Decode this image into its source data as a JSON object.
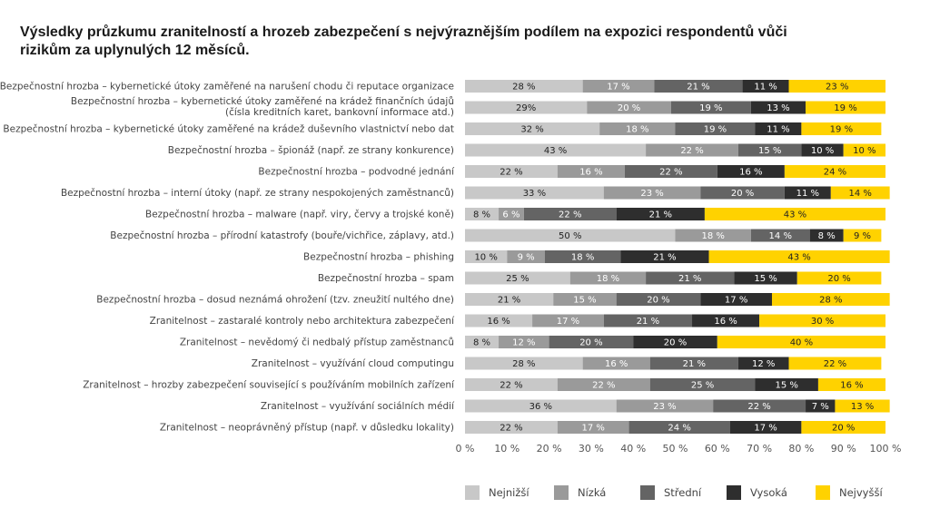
{
  "chart_data": {
    "type": "bar",
    "orientation": "horizontal",
    "stacked": true,
    "title": "Výsledky průzkumu zranitelností a hrozeb zabezpečení s nejvýraznějším podílem na expozici respondentů vůči rizikům za uplynulých 12 měsíců.",
    "categories": [
      [
        "Bezpečnostní hrozba – kybernetické útoky zaměřené na narušení chodu či reputace organizace"
      ],
      [
        "Bezpečnostní hrozba – kybernetické útoky zaměřené na krádež finančních údajů",
        "(čísla kreditních karet, bankovní informace atd.)"
      ],
      [
        "Bezpečnostní hrozba – kybernetické útoky zaměřené na krádež duševního vlastnictví nebo dat"
      ],
      [
        "Bezpečnostní hrozba – špionáž (např. ze strany konkurence)"
      ],
      [
        "Bezpečnostní hrozba – podvodné jednání"
      ],
      [
        "Bezpečnostní hrozba – interní útoky (např. ze strany nespokojených zaměstnanců)"
      ],
      [
        "Bezpečnostní hrozba – malware (např. viry, červy a trojské koně)"
      ],
      [
        "Bezpečnostní hrozba – přírodní katastrofy (bouře/vichřice, záplavy, atd.)"
      ],
      [
        "Bezpečnostní hrozba – phishing"
      ],
      [
        "Bezpečnostní hrozba – spam"
      ],
      [
        "Bezpečnostní hrozba – dosud neznámá ohrožení (tzv. zneužití nultého dne)"
      ],
      [
        "Zranitelnost – zastaralé kontroly nebo architektura zabezpečení"
      ],
      [
        "Zranitelnost – nevědomý či nedbalý přístup zaměstnanců"
      ],
      [
        "Zranitelnost – využívání cloud computingu"
      ],
      [
        "Zranitelnost – hrozby zabezpečení související s používáním mobilních zařízení"
      ],
      [
        "Zranitelnost – využívání sociálních médií"
      ],
      [
        "Zranitelnost – neoprávněný přístup (např. v důsledku lokality)"
      ]
    ],
    "series": [
      {
        "name": "Nejnižší",
        "color": "#c8c8c8",
        "text_color": "#222222",
        "values": [
          28,
          29,
          32,
          43,
          22,
          33,
          8,
          50,
          10,
          25,
          21,
          16,
          8,
          28,
          22,
          36,
          22
        ],
        "labels": [
          "28 %",
          "29%",
          "32 %",
          "43 %",
          "22 %",
          "33 %",
          "8 %",
          "50 %",
          "10 %",
          "25 %",
          "21 %",
          "16 %",
          "8 %",
          "28 %",
          "22 %",
          "36 %",
          "22 %"
        ]
      },
      {
        "name": "Nízká",
        "color": "#9a9a9a",
        "text_color": "#ffffff",
        "values": [
          17,
          20,
          18,
          22,
          16,
          23,
          6,
          18,
          9,
          18,
          15,
          17,
          12,
          16,
          22,
          23,
          17
        ],
        "labels": [
          "17 %",
          "20 %",
          "18 %",
          "22 %",
          "16 %",
          "23 %",
          "6 %",
          "18 %",
          "9 %",
          "18 %",
          "15 %",
          "17 %",
          "12 %",
          "16 %",
          "22 %",
          "23 %",
          "17 %"
        ]
      },
      {
        "name": "Střední",
        "color": "#646464",
        "text_color": "#ffffff",
        "values": [
          21,
          19,
          19,
          15,
          22,
          20,
          22,
          14,
          18,
          21,
          20,
          21,
          20,
          21,
          25,
          22,
          24
        ],
        "labels": [
          "21 %",
          "19 %",
          "19 %",
          "15 %",
          "22 %",
          "20 %",
          "22 %",
          "14 %",
          "18 %",
          "21 %",
          "20 %",
          "21 %",
          "20 %",
          "21 %",
          "25 %",
          "22 %",
          "24 %"
        ]
      },
      {
        "name": "Vysoká",
        "color": "#2e2e2e",
        "text_color": "#ffffff",
        "values": [
          11,
          13,
          11,
          10,
          16,
          11,
          21,
          8,
          21,
          15,
          17,
          16,
          20,
          12,
          15,
          7,
          17
        ],
        "labels": [
          "11 %",
          "13 %",
          "11 %",
          "10 %",
          "16 %",
          "11 %",
          "21 %",
          "8 %",
          "21 %",
          "15 %",
          "17 %",
          "16 %",
          "20 %",
          "12 %",
          "15 %",
          "7 %",
          "17 %"
        ]
      },
      {
        "name": "Nejvyšší",
        "color": "#ffd200",
        "text_color": "#222222",
        "values": [
          23,
          19,
          19,
          10,
          24,
          14,
          43,
          9,
          43,
          20,
          28,
          30,
          40,
          22,
          16,
          13,
          20
        ],
        "labels": [
          "23 %",
          "19 %",
          "19 %",
          "10 %",
          "24 %",
          "14 %",
          "43 %",
          "9 %",
          "43 %",
          "20 %",
          "28 %",
          "30 %",
          "40 %",
          "22 %",
          "16 %",
          "13 %",
          "20 %"
        ]
      }
    ],
    "xlim": [
      0,
      100
    ],
    "xticks": [
      "0 %",
      "10 %",
      "20 %",
      "30 %",
      "40 %",
      "50 %",
      "60 %",
      "70 %",
      "80 %",
      "90 %",
      "100 %"
    ],
    "grid": false,
    "legend": {
      "position": "bottom-right",
      "entries": [
        "Nejnižší",
        "Nízká",
        "Střední",
        "Vysoká",
        "Nejvyšší"
      ]
    }
  }
}
